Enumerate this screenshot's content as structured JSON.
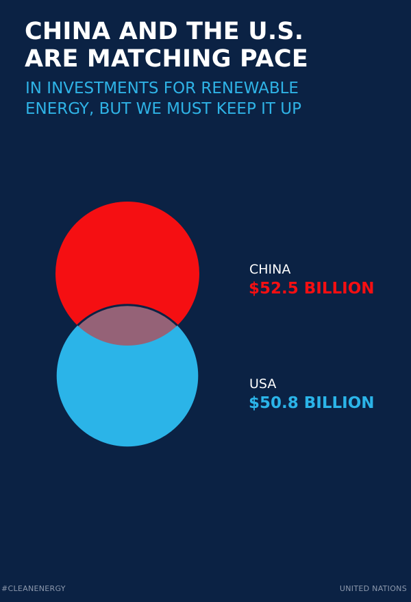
{
  "header": {
    "title_line1": "CHINA AND THE U.S.",
    "title_line2": "ARE MATCHING PACE",
    "subtitle_line1": "IN INVESTMENTS FOR RENEWABLE",
    "subtitle_line2": "ENERGY, BUT WE MUST KEEP IT UP"
  },
  "chart_data": {
    "type": "venn",
    "unit": "BILLION",
    "series": [
      {
        "name": "CHINA",
        "value": 52.5,
        "value_label": "$52.5 BILLION",
        "color": "#f50f12"
      },
      {
        "name": "USA",
        "value": 50.8,
        "value_label": "$50.8 BILLION",
        "color": "#2bb4e8"
      }
    ],
    "overlap_color": "#956277",
    "background_color": "#0b2244"
  },
  "footer": {
    "hashtag": "#CLEANENERGY",
    "source": "UNITED NATIONS"
  }
}
